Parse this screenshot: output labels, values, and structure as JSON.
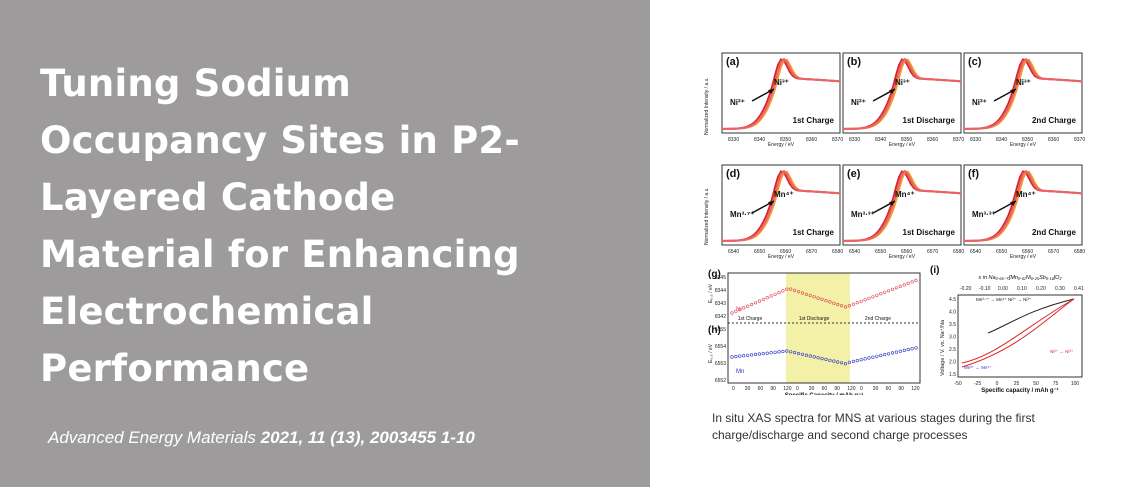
{
  "title_lines": [
    "Tuning Sodium",
    "Occupancy Sites in P2-",
    "Layered Cathode",
    "Material for Enhancing",
    "Electrochemical",
    "Performance"
  ],
  "citation": {
    "journal": "Advanced Energy Materials",
    "details": "2021, 11 (13), 2003455 1-10"
  },
  "figure": {
    "panels": [
      {
        "tag": "(a)",
        "ion_low": "Ni²⁺",
        "ion_high": "Ni³⁺",
        "stage": "1st Charge",
        "ticks": [
          "8330",
          "8340",
          "8350",
          "8360",
          "8370"
        ],
        "xlabel": "Energy / eV"
      },
      {
        "tag": "(b)",
        "ion_low": "Ni²⁺",
        "ion_high": "Ni³⁺",
        "stage": "1st Discharge",
        "ticks": [
          "8330",
          "8340",
          "8350",
          "8360",
          "8370"
        ],
        "xlabel": "Energy / eV"
      },
      {
        "tag": "(c)",
        "ion_low": "Ni²⁺",
        "ion_high": "Ni³⁺",
        "stage": "2nd Charge",
        "ticks": [
          "8330",
          "8340",
          "8350",
          "8360",
          "8370"
        ],
        "xlabel": "Energy / eV"
      },
      {
        "tag": "(d)",
        "ion_low": "Mn³·⁷⁺",
        "ion_high": "Mn⁴⁺",
        "stage": "1st Charge",
        "ticks": [
          "6540",
          "6550",
          "6560",
          "6570",
          "6580"
        ],
        "xlabel": "Energy / eV"
      },
      {
        "tag": "(e)",
        "ion_low": "Mn³·³⁺",
        "ion_high": "Mn⁴⁺",
        "stage": "1st Discharge",
        "ticks": [
          "6540",
          "6550",
          "6560",
          "6570",
          "6580"
        ],
        "xlabel": "Energy / eV"
      },
      {
        "tag": "(f)",
        "ion_low": "Mn³·³⁺",
        "ion_high": "Mn⁴⁺",
        "stage": "2nd Charge",
        "ticks": [
          "6540",
          "6550",
          "6560",
          "6570",
          "6580"
        ],
        "xlabel": "Energy / eV"
      }
    ],
    "ylabel_xas": "Normalized Intensity / a.u.",
    "g_tag": "(g)",
    "h_tag": "(h)",
    "i_tag": "(i)",
    "g_series": "Ni",
    "h_series": "Mn",
    "g_ylabel": "E₀,₅ / eV",
    "h_ylabel": "E₀,₅ / eV",
    "g_yticks": [
      "8345",
      "8344",
      "8343",
      "8342"
    ],
    "h_yticks": [
      "6555",
      "6554",
      "6553",
      "6552"
    ],
    "stage_labels": [
      "1st Charge",
      "1st Discharge",
      "2nd Charge"
    ],
    "gh_xticks": [
      "0",
      "30",
      "60",
      "90",
      "120",
      "0",
      "30",
      "60",
      "90",
      "120",
      "0",
      "30",
      "60",
      "90",
      "120"
    ],
    "gh_xlabel": "Specific Capacity / mAh g⁻¹",
    "i_toplabel": "x in Na₀.₆₆₋ₓ[Mn₀.₆₁Ni₀.₂₅Sb₀.₁₄]O₂",
    "i_top_ticks": [
      "-0.20",
      "-0.10",
      "0.00",
      "0.10",
      "0.20",
      "0.30",
      "0.41"
    ],
    "i_yticks": [
      "4.5",
      "4.0",
      "3.5",
      "3.0",
      "2.5",
      "2.0",
      "1.5"
    ],
    "i_xticks": [
      "-50",
      "-25",
      "0",
      "25",
      "50",
      "75",
      "100"
    ],
    "i_ylabel": "Voltage / V. vs. Na⁺/Na",
    "i_xlabel": "Specific capacity / mAh g⁻¹",
    "i_annot_top": "Mn³·⁷⁺ → Mn⁴⁺  Ni²⁺ → Ni³⁺",
    "i_annot_mid": "Ni²⁺ ↔ Ni³⁺",
    "i_annot_low": "Mn³⁺ ↔ Mn⁴⁺"
  },
  "caption": "In situ XAS spectra for MNS at various stages during the first charge/discharge and second charge processes"
}
